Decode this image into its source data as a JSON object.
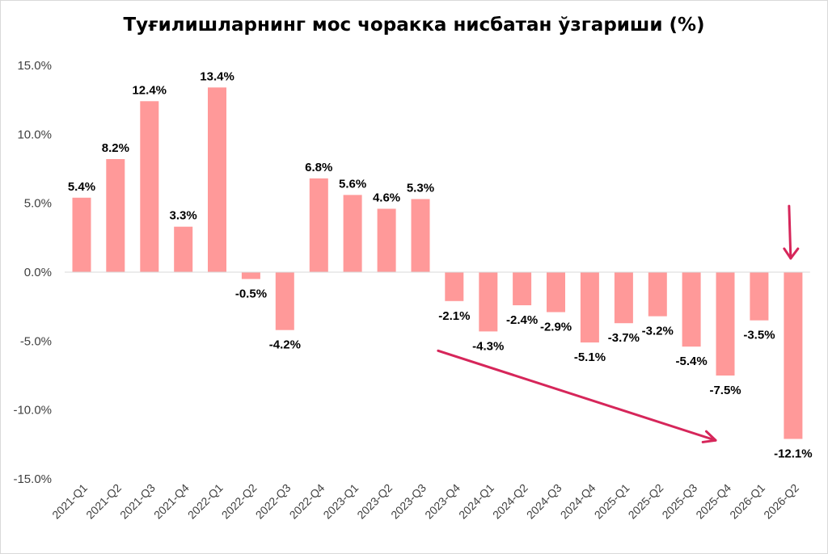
{
  "chart_data": {
    "type": "bar",
    "title": "Туғилишларнинг мос чоракка нисбатан ўзгариши (%)",
    "categories": [
      "2021-Q1",
      "2021-Q2",
      "2021-Q3",
      "2021-Q4",
      "2022-Q1",
      "2022-Q2",
      "2022-Q3",
      "2022-Q4",
      "2023-Q1",
      "2023-Q2",
      "2023-Q3",
      "2023-Q4",
      "2024-Q1",
      "2024-Q2",
      "2024-Q3",
      "2024-Q4",
      "2025-Q1",
      "2025-Q2",
      "2025-Q3",
      "2025-Q4",
      "2026-Q1",
      "2026-Q2"
    ],
    "values": [
      5.4,
      8.2,
      12.4,
      3.3,
      13.4,
      -0.5,
      -4.2,
      6.8,
      5.6,
      4.6,
      5.3,
      -2.1,
      -4.3,
      -2.4,
      -2.9,
      -5.1,
      -3.7,
      -3.2,
      -5.4,
      -7.5,
      -3.5,
      -12.1
    ],
    "data_labels": [
      "5.4%",
      "8.2%",
      "12.4%",
      "3.3%",
      "13.4%",
      "-0.5%",
      "-4.2%",
      "6.8%",
      "5.6%",
      "4.6%",
      "5.3%",
      "-2.1%",
      "-4.3%",
      "-2.4%",
      "-2.9%",
      "-5.1%",
      "-3.7%",
      "-3.2%",
      "-5.4%",
      "-7.5%",
      "-3.5%",
      "-12.1%"
    ],
    "yticks": [
      15,
      10,
      5,
      0,
      -5,
      -10,
      -15
    ],
    "ytick_labels": [
      "15.0%",
      "10.0%",
      "5.0%",
      "0.0%",
      "-5.0%",
      "-10.0%",
      "-15.0%"
    ],
    "ylim": [
      -15,
      15
    ],
    "grid": false,
    "legend": "none",
    "bar_color": "#ff9999",
    "annotation_color": "#d6265a",
    "annotations": [
      {
        "type": "trend-arrow",
        "from_category": "2023-Q4",
        "to_category": "2025-Q4",
        "from_value": -5.7,
        "to_value": -12.2
      },
      {
        "type": "down-arrow",
        "category": "2026-Q2",
        "from_value": 4.8,
        "to_value": 1.0
      }
    ]
  }
}
